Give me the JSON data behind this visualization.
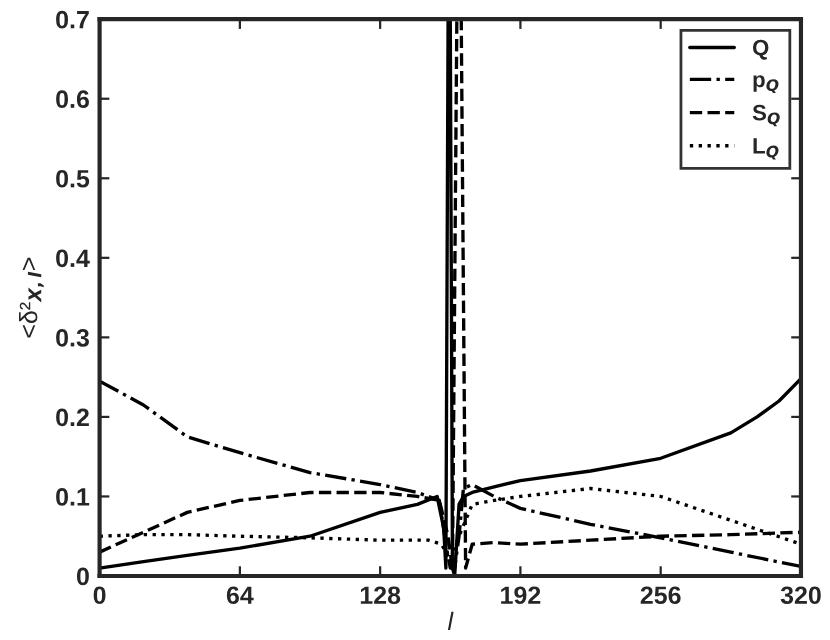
{
  "chart_data": {
    "type": "line",
    "xlabel": "l",
    "ylabel": "<δ²$_{X,l}$>",
    "xlim": [
      0,
      320
    ],
    "ylim": [
      0,
      0.7
    ],
    "xticks": [
      0,
      64,
      128,
      192,
      256,
      320
    ],
    "yticks": [
      0,
      0.1,
      0.2,
      0.3,
      0.4,
      0.5,
      0.6,
      0.7
    ],
    "grid": false,
    "legend": "top right",
    "marker": "none",
    "series": [
      {
        "name": "Q",
        "color": "#000000",
        "line_style": "solid",
        "x": [
          0,
          20,
          40,
          64,
          96,
          128,
          145,
          154,
          157,
          158,
          159,
          160,
          161,
          162,
          164,
          166,
          170,
          180,
          192,
          224,
          256,
          288,
          300,
          310,
          320
        ],
        "values": [
          0.01,
          0.018,
          0.026,
          0.035,
          0.05,
          0.08,
          0.09,
          0.1,
          0.06,
          0.01,
          0.7,
          0.7,
          0.01,
          0.0,
          0.09,
          0.1,
          0.105,
          0.112,
          0.12,
          0.132,
          0.148,
          0.18,
          0.2,
          0.22,
          0.248
        ]
      },
      {
        "name": "p$_{Q}$",
        "color": "#000000",
        "line_style": "dashdot",
        "x": [
          0,
          20,
          40,
          64,
          96,
          128,
          145,
          155,
          158,
          160,
          162,
          164,
          166,
          170,
          180,
          192,
          224,
          256,
          288,
          320
        ],
        "values": [
          0.245,
          0.215,
          0.175,
          0.155,
          0.13,
          0.115,
          0.105,
          0.095,
          0.04,
          0.01,
          0.01,
          0.05,
          0.11,
          0.115,
          0.1,
          0.085,
          0.065,
          0.048,
          0.03,
          0.012
        ]
      },
      {
        "name": "S$_{Q}$",
        "color": "#000000",
        "line_style": "dashed",
        "x": [
          0,
          20,
          40,
          64,
          96,
          128,
          145,
          155,
          159,
          161,
          163,
          165,
          167,
          170,
          180,
          192,
          224,
          256,
          288,
          320
        ],
        "values": [
          0.03,
          0.055,
          0.08,
          0.095,
          0.105,
          0.105,
          0.1,
          0.095,
          0.05,
          0.01,
          0.7,
          0.7,
          0.01,
          0.04,
          0.042,
          0.04,
          0.045,
          0.05,
          0.052,
          0.055
        ]
      },
      {
        "name": "L$_{Q}$",
        "color": "#000000",
        "line_style": "dotted",
        "x": [
          0,
          20,
          40,
          64,
          96,
          128,
          150,
          156,
          160,
          164,
          170,
          180,
          192,
          224,
          256,
          288,
          320
        ],
        "values": [
          0.05,
          0.052,
          0.052,
          0.05,
          0.048,
          0.045,
          0.045,
          0.04,
          0.02,
          0.05,
          0.09,
          0.095,
          0.1,
          0.11,
          0.1,
          0.07,
          0.04
        ]
      }
    ]
  }
}
